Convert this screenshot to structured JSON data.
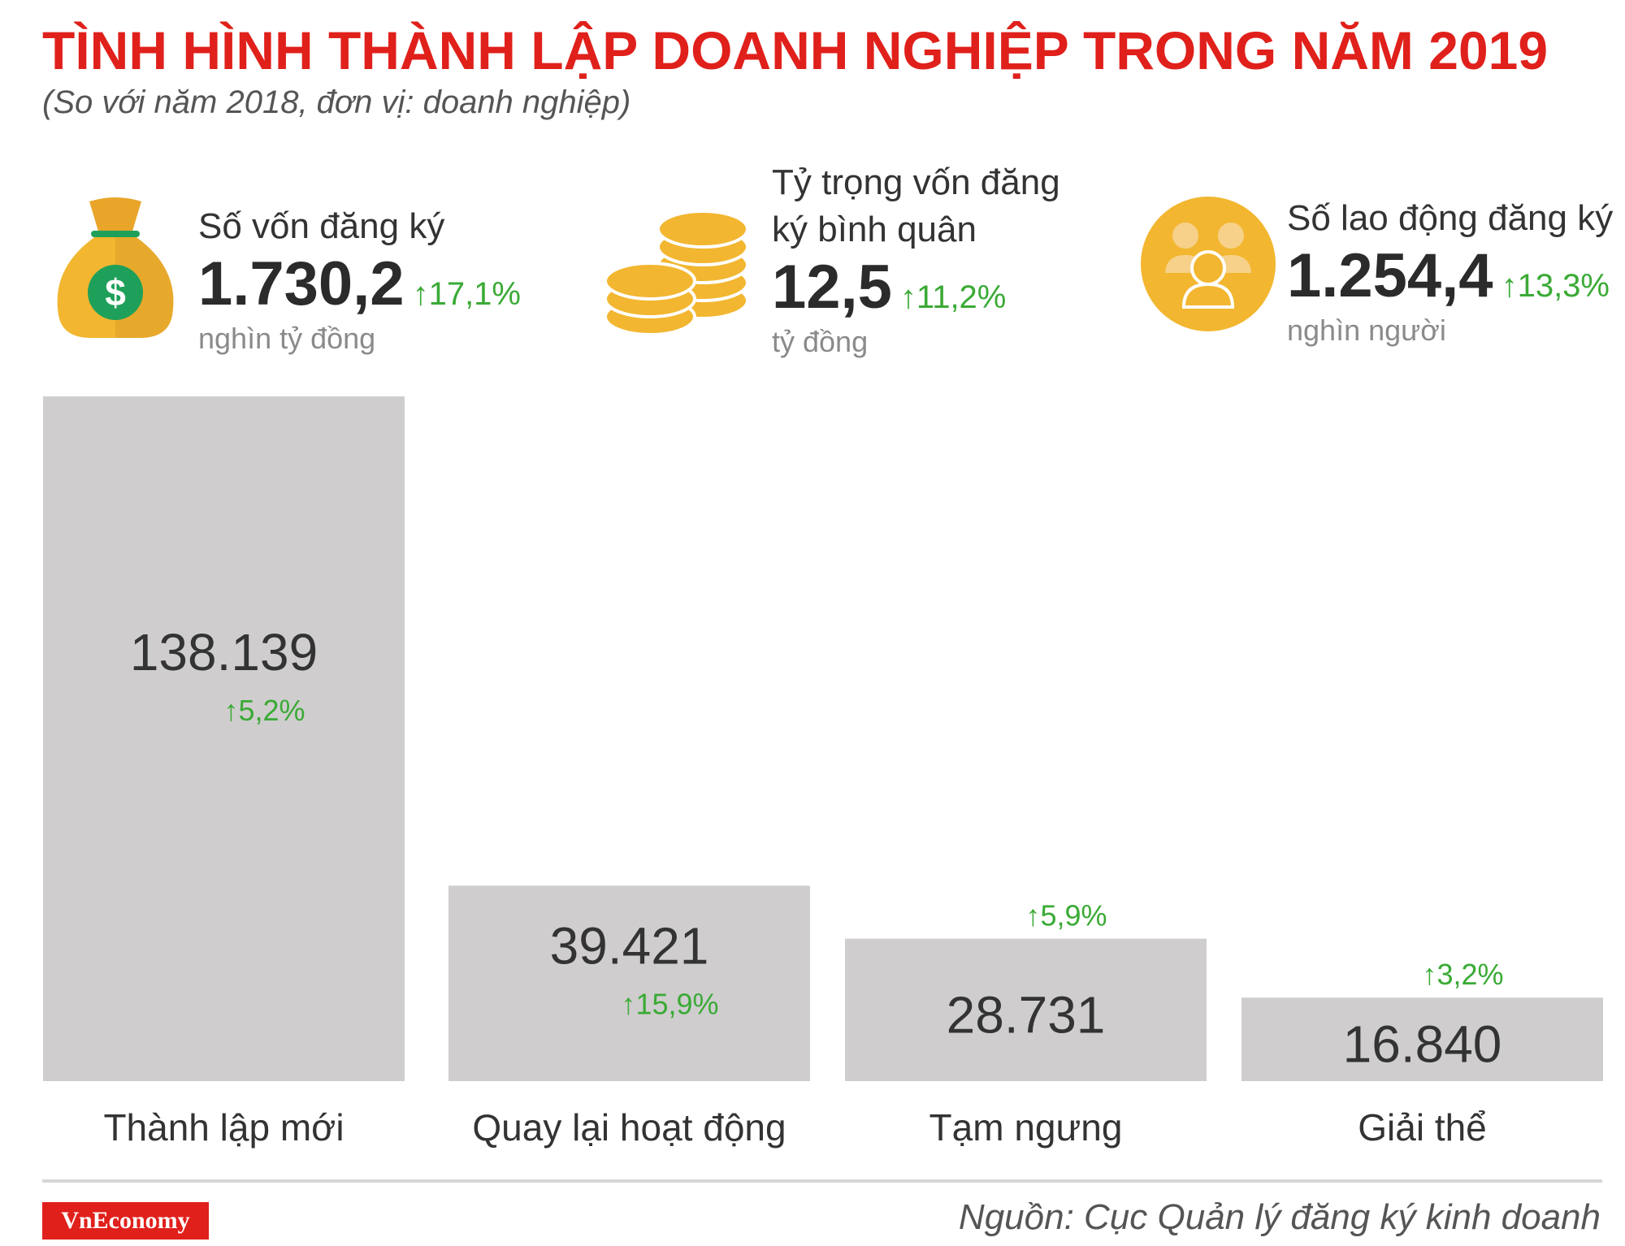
{
  "header": {
    "title": "TÌNH HÌNH THÀNH LẬP DOANH NGHIỆP TRONG NĂM 2019",
    "subtitle": "(So với năm 2018, đơn vị: doanh nghiệp)"
  },
  "kpis": [
    {
      "label_line1": "Số vốn đăng ký",
      "label_line2": "",
      "value": "1.730,2",
      "change": "17,1%",
      "unit": "nghìn tỷ đồng",
      "icon": "money-bag-icon"
    },
    {
      "label_line1": "Tỷ trọng vốn đăng",
      "label_line2": "ký bình quân",
      "value": "12,5",
      "change": "11,2%",
      "unit": "tỷ đồng",
      "icon": "coins-icon"
    },
    {
      "label_line1": "Số lao động đăng ký",
      "label_line2": "",
      "value": "1.254,4",
      "change": "13,3%",
      "unit": "nghìn người",
      "icon": "people-icon"
    }
  ],
  "colors": {
    "title": "#e0201b",
    "bar": "#cfcdce",
    "up": "#3aaa35",
    "icon_gold": "#f2b630",
    "icon_green": "#1fa05a"
  },
  "chart_data": {
    "type": "bar",
    "categories": [
      "Thành lập mới",
      "Quay lại hoạt động",
      "Tạm ngưng",
      "Giải thể"
    ],
    "values": [
      138139,
      39421,
      28731,
      16840
    ],
    "value_labels": [
      "138.139",
      "39.421",
      "28.731",
      "16.840"
    ],
    "changes": [
      "5,2%",
      "15,9%",
      "5,9%",
      "3,2%"
    ],
    "ylim": [
      0,
      138139
    ],
    "grid": false
  },
  "footer": {
    "brand": "VnEconomy",
    "source": "Nguồn: Cục Quản lý đăng ký kinh doanh"
  }
}
